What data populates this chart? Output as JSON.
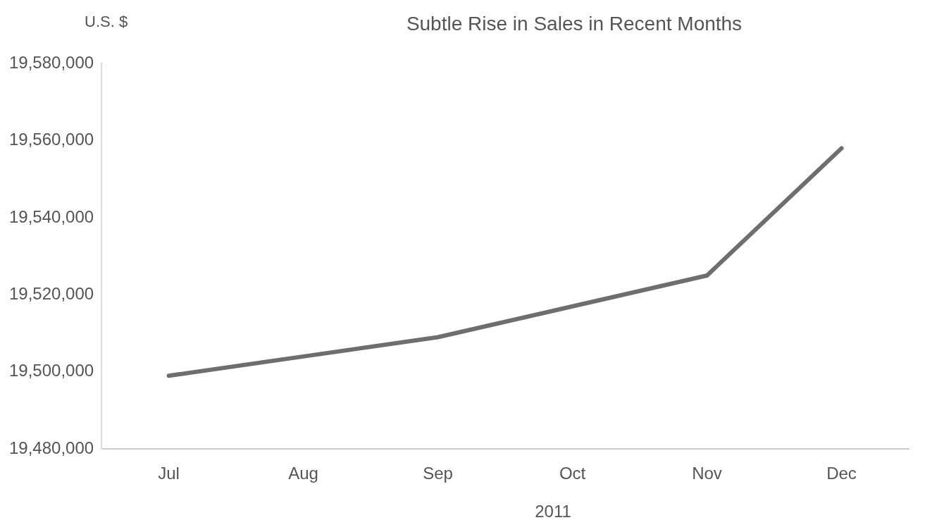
{
  "chart_data": {
    "type": "line",
    "title": "Subtle Rise in Sales in Recent Months",
    "ylabel": "U.S. $",
    "xlabel": "2011",
    "categories": [
      "Jul",
      "Aug",
      "Sep",
      "Oct",
      "Nov",
      "Dec"
    ],
    "series": [
      {
        "color": "#6e6e6e",
        "values": [
          19499000,
          19504000,
          19509000,
          19517000,
          19525000,
          19558000
        ]
      }
    ],
    "ylim": [
      19480000,
      19580000
    ],
    "yticks": [
      {
        "value": 19480000,
        "label": "19,480,000"
      },
      {
        "value": 19500000,
        "label": "19,500,000"
      },
      {
        "value": 19520000,
        "label": "19,520,000"
      },
      {
        "value": 19540000,
        "label": "19,540,000"
      },
      {
        "value": 19560000,
        "label": "19,560,000"
      },
      {
        "value": 19580000,
        "label": "19,580,000"
      }
    ],
    "grid": false,
    "legend": false,
    "marker": "none",
    "line_style": "solid"
  }
}
